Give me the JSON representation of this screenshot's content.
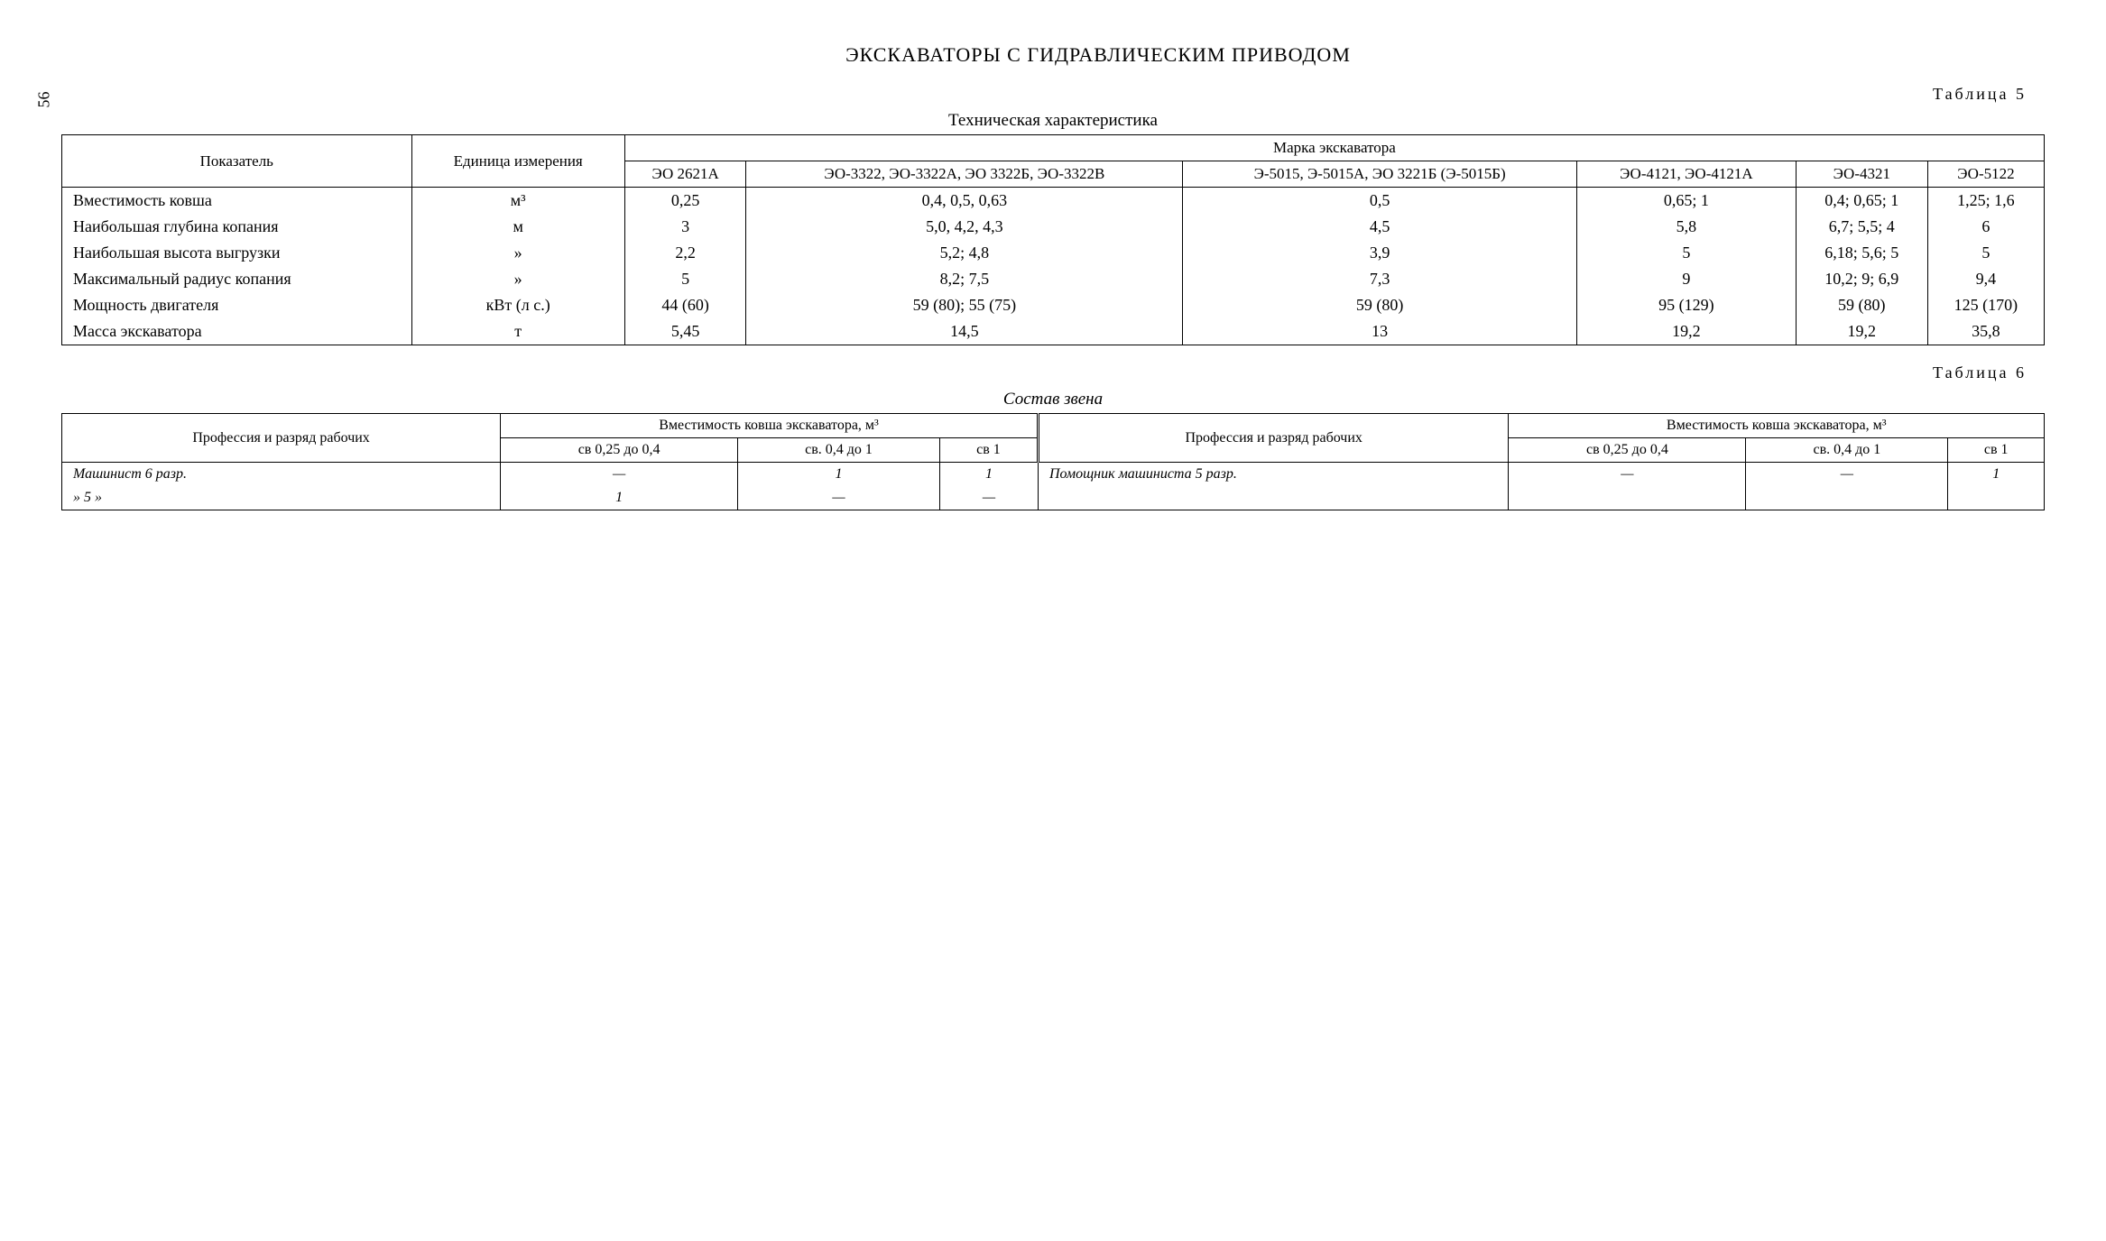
{
  "page_number": "56",
  "main_title": "ЭКСКАВАТОРЫ С ГИДРАВЛИЧЕСКИМ ПРИВОДОМ",
  "table5": {
    "label": "Таблица 5",
    "subtitle": "Техническая характеристика",
    "header_indicator": "Показатель",
    "header_unit": "Единица измерения",
    "header_brand": "Марка экскаватора",
    "brands": [
      "ЭО 2621А",
      "ЭО-3322, ЭО-3322А, ЭО 3322Б, ЭО-3322В",
      "Э-5015, Э-5015А, ЭО 3221Б (Э-5015Б)",
      "ЭО-4121, ЭО-4121А",
      "ЭО-4321",
      "ЭО-5122"
    ],
    "rows": [
      {
        "label": "Вместимость ковша",
        "unit": "м³",
        "vals": [
          "0,25",
          "0,4, 0,5, 0,63",
          "0,5",
          "0,65; 1",
          "0,4; 0,65; 1",
          "1,25; 1,6"
        ]
      },
      {
        "label": "Наибольшая глубина копания",
        "unit": "м",
        "vals": [
          "3",
          "5,0, 4,2, 4,3",
          "4,5",
          "5,8",
          "6,7; 5,5; 4",
          "6"
        ]
      },
      {
        "label": "Наибольшая высота выгрузки",
        "unit": "»",
        "vals": [
          "2,2",
          "5,2; 4,8",
          "3,9",
          "5",
          "6,18; 5,6; 5",
          "5"
        ]
      },
      {
        "label": "Максимальный радиус копания",
        "unit": "»",
        "vals": [
          "5",
          "8,2; 7,5",
          "7,3",
          "9",
          "10,2; 9; 6,9",
          "9,4"
        ]
      },
      {
        "label": "Мощность двигателя",
        "unit": "кВт (л с.)",
        "vals": [
          "44 (60)",
          "59 (80); 55 (75)",
          "59 (80)",
          "95 (129)",
          "59 (80)",
          "125 (170)"
        ]
      },
      {
        "label": "Масса экскаватора",
        "unit": "т",
        "vals": [
          "5,45",
          "14,5",
          "13",
          "19,2",
          "19,2",
          "35,8"
        ]
      }
    ]
  },
  "table6": {
    "label": "Таблица 6",
    "subtitle": "Состав звена",
    "header_profession": "Профессия и разряд рабочих",
    "header_capacity": "Вместимость ковша экскаватора, м³",
    "capacity_cols": [
      "св 0,25 до 0,4",
      "св. 0,4 до 1",
      "св 1"
    ],
    "rows": [
      {
        "label_left": "Машинист 6 разр.",
        "vals_left": [
          "—",
          "1",
          "1"
        ],
        "label_right": "Помощник машиниста 5 разр.",
        "vals_right": [
          "—",
          "—",
          "1"
        ]
      },
      {
        "label_left": "» 5 »",
        "vals_left": [
          "1",
          "—",
          "—"
        ],
        "label_right": "",
        "vals_right": [
          "",
          "",
          ""
        ]
      }
    ]
  }
}
